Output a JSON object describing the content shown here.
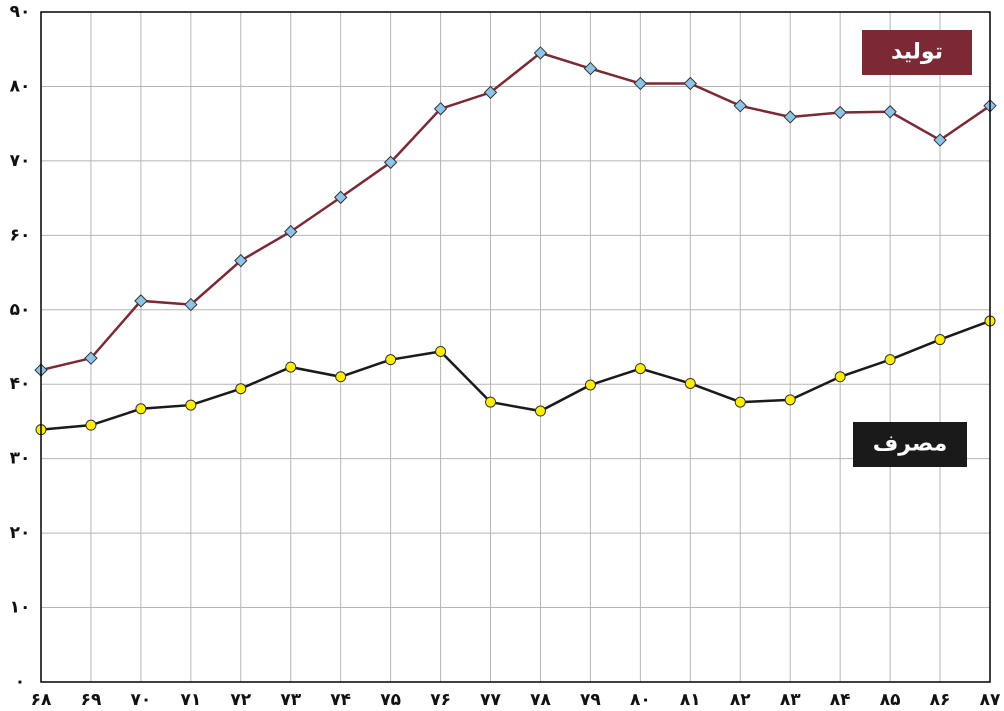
{
  "chart_data": {
    "type": "line",
    "categories": [
      "۶۸",
      "۶۹",
      "۷۰",
      "۷۱",
      "۷۲",
      "۷۳",
      "۷۴",
      "۷۵",
      "۷۶",
      "۷۷",
      "۷۸",
      "۷۹",
      "۸۰",
      "۸۱",
      "۸۲",
      "۸۳",
      "۸۴",
      "۸۵",
      "۸۶",
      "۸۷"
    ],
    "series": [
      {
        "name": "تولید",
        "color": "#7b2a35",
        "marker": "diamond",
        "marker_color": "#8fc3e8",
        "values": [
          41.9,
          43.5,
          51.2,
          50.7,
          56.6,
          60.5,
          65.1,
          69.8,
          77.0,
          79.2,
          84.5,
          82.4,
          80.4,
          80.4,
          77.4,
          75.9,
          76.5,
          76.6,
          72.8,
          77.4
        ]
      },
      {
        "name": "مصرف",
        "color": "#1a1a1a",
        "marker": "circle",
        "marker_color": "#ffee00",
        "values": [
          33.9,
          34.5,
          36.7,
          37.2,
          39.4,
          42.3,
          41.0,
          43.3,
          44.4,
          37.6,
          36.4,
          39.9,
          42.1,
          40.1,
          37.6,
          37.9,
          41.0,
          43.3,
          46.0,
          48.5
        ]
      }
    ],
    "ylim": [
      0,
      90
    ],
    "yticks": [
      {
        "value": 0,
        "label": "۰"
      },
      {
        "value": 10,
        "label": "۱۰"
      },
      {
        "value": 20,
        "label": "۲۰"
      },
      {
        "value": 30,
        "label": "۳۰"
      },
      {
        "value": 40,
        "label": "۴۰"
      },
      {
        "value": 50,
        "label": "۵۰"
      },
      {
        "value": 60,
        "label": "۶۰"
      },
      {
        "value": 70,
        "label": "۷۰"
      },
      {
        "value": 80,
        "label": "۸۰"
      },
      {
        "value": 90,
        "label": "۹۰"
      }
    ],
    "grid": true
  }
}
